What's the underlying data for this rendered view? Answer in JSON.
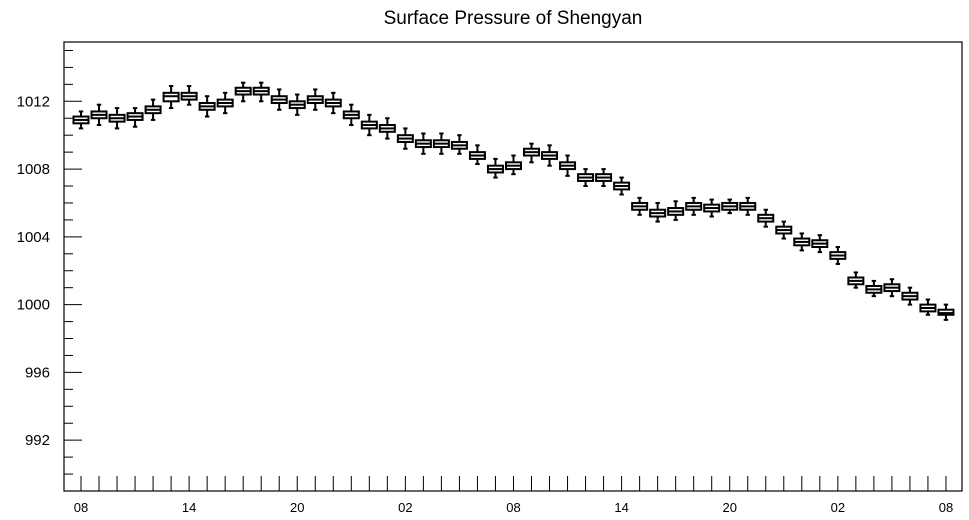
{
  "chart_data": {
    "type": "box",
    "title": "Surface Pressure of Shengyan",
    "xlabel": "",
    "ylabel": "",
    "ylim": [
      989.0,
      1015.5
    ],
    "yticks": [
      992,
      996,
      1000,
      1004,
      1008,
      1012
    ],
    "x_tick_labels": [
      "08",
      "14",
      "20",
      "02",
      "08",
      "14",
      "20",
      "02",
      "08"
    ],
    "grid": false,
    "legend": "none",
    "series": [
      {
        "boxes": [
          {
            "x": 0,
            "min": 1010.4,
            "q1": 1010.7,
            "median": 1010.9,
            "q3": 1011.1,
            "max": 1011.4
          },
          {
            "x": 1,
            "min": 1010.6,
            "q1": 1011.0,
            "median": 1011.2,
            "q3": 1011.4,
            "max": 1011.8
          },
          {
            "x": 2,
            "min": 1010.4,
            "q1": 1010.8,
            "median": 1011.0,
            "q3": 1011.2,
            "max": 1011.6
          },
          {
            "x": 3,
            "min": 1010.5,
            "q1": 1010.9,
            "median": 1011.1,
            "q3": 1011.3,
            "max": 1011.6
          },
          {
            "x": 4,
            "min": 1010.9,
            "q1": 1011.3,
            "median": 1011.5,
            "q3": 1011.7,
            "max": 1012.1
          },
          {
            "x": 5,
            "min": 1011.6,
            "q1": 1012.0,
            "median": 1012.3,
            "q3": 1012.5,
            "max": 1012.9
          },
          {
            "x": 6,
            "min": 1011.8,
            "q1": 1012.1,
            "median": 1012.3,
            "q3": 1012.5,
            "max": 1012.9
          },
          {
            "x": 7,
            "min": 1011.1,
            "q1": 1011.5,
            "median": 1011.7,
            "q3": 1011.9,
            "max": 1012.3
          },
          {
            "x": 8,
            "min": 1011.3,
            "q1": 1011.7,
            "median": 1011.9,
            "q3": 1012.1,
            "max": 1012.5
          },
          {
            "x": 9,
            "min": 1012.0,
            "q1": 1012.4,
            "median": 1012.6,
            "q3": 1012.8,
            "max": 1013.1
          },
          {
            "x": 10,
            "min": 1012.0,
            "q1": 1012.4,
            "median": 1012.6,
            "q3": 1012.8,
            "max": 1013.1
          },
          {
            "x": 11,
            "min": 1011.5,
            "q1": 1011.9,
            "median": 1012.1,
            "q3": 1012.3,
            "max": 1012.7
          },
          {
            "x": 12,
            "min": 1011.2,
            "q1": 1011.6,
            "median": 1011.8,
            "q3": 1012.0,
            "max": 1012.4
          },
          {
            "x": 13,
            "min": 1011.5,
            "q1": 1011.9,
            "median": 1012.1,
            "q3": 1012.3,
            "max": 1012.7
          },
          {
            "x": 14,
            "min": 1011.3,
            "q1": 1011.7,
            "median": 1011.9,
            "q3": 1012.1,
            "max": 1012.5
          },
          {
            "x": 15,
            "min": 1010.6,
            "q1": 1011.0,
            "median": 1011.2,
            "q3": 1011.4,
            "max": 1011.8
          },
          {
            "x": 16,
            "min": 1010.0,
            "q1": 1010.4,
            "median": 1010.6,
            "q3": 1010.8,
            "max": 1011.2
          },
          {
            "x": 17,
            "min": 1009.8,
            "q1": 1010.2,
            "median": 1010.4,
            "q3": 1010.6,
            "max": 1011.0
          },
          {
            "x": 18,
            "min": 1009.2,
            "q1": 1009.6,
            "median": 1009.8,
            "q3": 1010.0,
            "max": 1010.4
          },
          {
            "x": 19,
            "min": 1008.9,
            "q1": 1009.3,
            "median": 1009.5,
            "q3": 1009.7,
            "max": 1010.1
          },
          {
            "x": 20,
            "min": 1008.9,
            "q1": 1009.3,
            "median": 1009.5,
            "q3": 1009.7,
            "max": 1010.1
          },
          {
            "x": 21,
            "min": 1008.9,
            "q1": 1009.2,
            "median": 1009.4,
            "q3": 1009.6,
            "max": 1010.0
          },
          {
            "x": 22,
            "min": 1008.3,
            "q1": 1008.6,
            "median": 1008.8,
            "q3": 1009.0,
            "max": 1009.4
          },
          {
            "x": 23,
            "min": 1007.5,
            "q1": 1007.8,
            "median": 1008.0,
            "q3": 1008.2,
            "max": 1008.6
          },
          {
            "x": 24,
            "min": 1007.7,
            "q1": 1008.0,
            "median": 1008.2,
            "q3": 1008.4,
            "max": 1008.8
          },
          {
            "x": 25,
            "min": 1008.4,
            "q1": 1008.8,
            "median": 1009.0,
            "q3": 1009.2,
            "max": 1009.5
          },
          {
            "x": 26,
            "min": 1008.2,
            "q1": 1008.6,
            "median": 1008.8,
            "q3": 1009.0,
            "max": 1009.4
          },
          {
            "x": 27,
            "min": 1007.6,
            "q1": 1008.0,
            "median": 1008.2,
            "q3": 1008.4,
            "max": 1008.8
          },
          {
            "x": 28,
            "min": 1007.0,
            "q1": 1007.3,
            "median": 1007.5,
            "q3": 1007.7,
            "max": 1008.0
          },
          {
            "x": 29,
            "min": 1007.0,
            "q1": 1007.3,
            "median": 1007.5,
            "q3": 1007.7,
            "max": 1008.0
          },
          {
            "x": 30,
            "min": 1006.5,
            "q1": 1006.8,
            "median": 1007.0,
            "q3": 1007.2,
            "max": 1007.5
          },
          {
            "x": 31,
            "min": 1005.3,
            "q1": 1005.6,
            "median": 1005.8,
            "q3": 1006.0,
            "max": 1006.3
          },
          {
            "x": 32,
            "min": 1004.9,
            "q1": 1005.2,
            "median": 1005.4,
            "q3": 1005.6,
            "max": 1006.0
          },
          {
            "x": 33,
            "min": 1005.0,
            "q1": 1005.3,
            "median": 1005.5,
            "q3": 1005.7,
            "max": 1006.1
          },
          {
            "x": 34,
            "min": 1005.3,
            "q1": 1005.6,
            "median": 1005.8,
            "q3": 1006.0,
            "max": 1006.3
          },
          {
            "x": 35,
            "min": 1005.2,
            "q1": 1005.5,
            "median": 1005.7,
            "q3": 1005.9,
            "max": 1006.2
          },
          {
            "x": 36,
            "min": 1005.4,
            "q1": 1005.6,
            "median": 1005.8,
            "q3": 1006.0,
            "max": 1006.2
          },
          {
            "x": 37,
            "min": 1005.3,
            "q1": 1005.6,
            "median": 1005.8,
            "q3": 1006.0,
            "max": 1006.3
          },
          {
            "x": 38,
            "min": 1004.6,
            "q1": 1004.9,
            "median": 1005.1,
            "q3": 1005.3,
            "max": 1005.6
          },
          {
            "x": 39,
            "min": 1003.9,
            "q1": 1004.2,
            "median": 1004.4,
            "q3": 1004.6,
            "max": 1004.9
          },
          {
            "x": 40,
            "min": 1003.2,
            "q1": 1003.5,
            "median": 1003.7,
            "q3": 1003.9,
            "max": 1004.2
          },
          {
            "x": 41,
            "min": 1003.1,
            "q1": 1003.4,
            "median": 1003.6,
            "q3": 1003.8,
            "max": 1004.1
          },
          {
            "x": 42,
            "min": 1002.4,
            "q1": 1002.7,
            "median": 1002.9,
            "q3": 1003.1,
            "max": 1003.4
          },
          {
            "x": 43,
            "min": 1001.0,
            "q1": 1001.2,
            "median": 1001.4,
            "q3": 1001.6,
            "max": 1001.9
          },
          {
            "x": 44,
            "min": 1000.5,
            "q1": 1000.7,
            "median": 1000.9,
            "q3": 1001.1,
            "max": 1001.4
          },
          {
            "x": 45,
            "min": 1000.5,
            "q1": 1000.8,
            "median": 1001.0,
            "q3": 1001.2,
            "max": 1001.5
          },
          {
            "x": 46,
            "min": 1000.0,
            "q1": 1000.3,
            "median": 1000.5,
            "q3": 1000.7,
            "max": 1001.0
          },
          {
            "x": 47,
            "min": 999.4,
            "q1": 999.6,
            "median": 999.8,
            "q3": 1000.0,
            "max": 1000.3
          },
          {
            "x": 48,
            "min": 999.1,
            "q1": 999.4,
            "median": 999.5,
            "q3": 999.7,
            "max": 1000.0
          }
        ]
      }
    ]
  }
}
